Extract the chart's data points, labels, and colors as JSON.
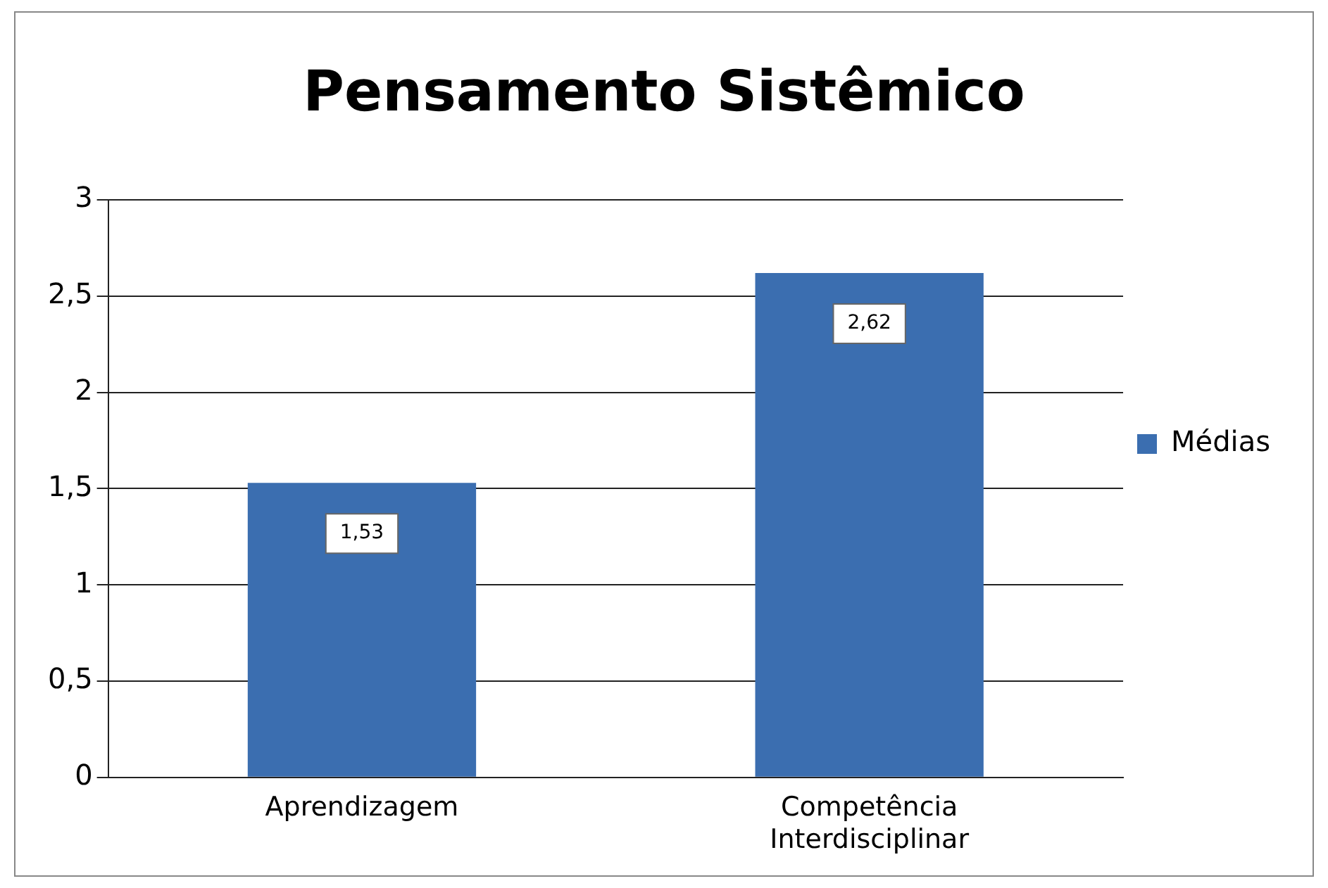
{
  "chart_data": {
    "type": "bar",
    "title": "Pensamento Sistêmico",
    "categories": [
      "Aprendizagem",
      "Competência Interdisciplinar"
    ],
    "series": [
      {
        "name": "Médias",
        "color": "#3b6eb0",
        "values": [
          1.53,
          2.62
        ],
        "value_labels": [
          "1,53",
          "2,62"
        ]
      }
    ],
    "ylim": [
      0,
      3
    ],
    "yticks": [
      0,
      {
        "value": 0.5,
        "label": "0,5"
      },
      1,
      {
        "value": 1.5,
        "label": "1,5"
      },
      2,
      {
        "value": 2.5,
        "label": "2,5"
      },
      3
    ],
    "grid": "y",
    "legend": "right"
  }
}
